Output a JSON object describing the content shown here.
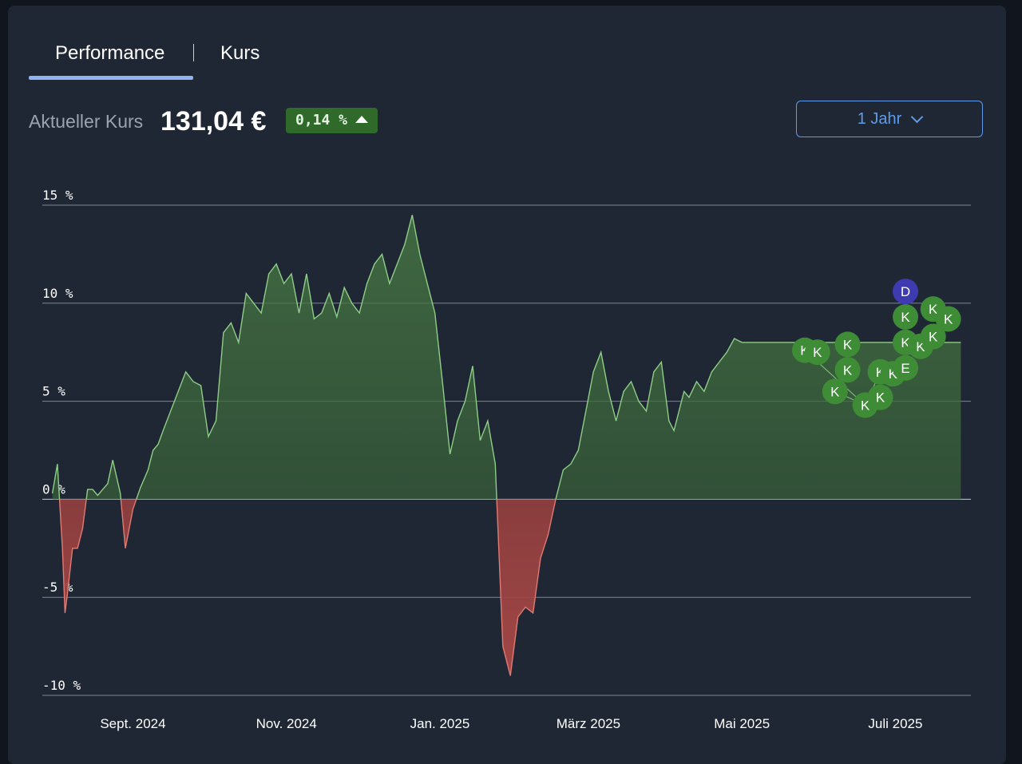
{
  "tabs": [
    {
      "label": "Performance",
      "active": true
    },
    {
      "label": "Kurs",
      "active": false
    }
  ],
  "price": {
    "label": "Aktueller Kurs",
    "value": "131,04 €",
    "change": "0,14 %",
    "direction": "up"
  },
  "range_select": {
    "value": "1 Jahr"
  },
  "colors": {
    "positive_line": "#8fce87",
    "negative_line": "#e07a72",
    "marker_k": "#3f8c37",
    "marker_d": "#3e3bb0",
    "accent": "#5e9be8"
  },
  "chart_data": {
    "type": "area",
    "yunit": "%",
    "ylim": [
      -10,
      15
    ],
    "yticks": [
      15,
      10,
      5,
      0,
      -5,
      -10
    ],
    "ytick_labels": [
      "15 %",
      "10 %",
      "5 %",
      "0 %",
      "-5 %",
      "-10 %"
    ],
    "xlim": [
      "2024-07-27",
      "2025-07-31"
    ],
    "xticks": [
      {
        "date": "2024-09-01",
        "label": "Sept. 2024"
      },
      {
        "date": "2024-11-01",
        "label": "Nov. 2024"
      },
      {
        "date": "2025-01-01",
        "label": "Jan. 2025"
      },
      {
        "date": "2025-03-01",
        "label": "März 2025"
      },
      {
        "date": "2025-05-01",
        "label": "Mai 2025"
      },
      {
        "date": "2025-07-01",
        "label": "Juli 2025"
      }
    ],
    "grid": true,
    "series": [
      {
        "x": [
          "2024-07-31",
          "2024-08-02",
          "2024-08-04",
          "2024-08-05",
          "2024-08-06",
          "2024-08-08",
          "2024-08-10",
          "2024-08-12",
          "2024-08-14",
          "2024-08-16",
          "2024-08-18",
          "2024-08-20",
          "2024-08-22",
          "2024-08-24",
          "2024-08-27",
          "2024-08-29",
          "2024-09-01",
          "2024-09-04",
          "2024-09-07",
          "2024-09-09",
          "2024-09-11",
          "2024-09-13",
          "2024-09-16",
          "2024-09-19",
          "2024-09-22",
          "2024-09-25",
          "2024-09-28",
          "2024-10-01",
          "2024-10-04",
          "2024-10-07",
          "2024-10-10",
          "2024-10-13",
          "2024-10-16",
          "2024-10-19",
          "2024-10-22",
          "2024-10-25",
          "2024-10-28",
          "2024-10-31",
          "2024-11-03",
          "2024-11-06",
          "2024-11-09",
          "2024-11-12",
          "2024-11-15",
          "2024-11-18",
          "2024-11-21",
          "2024-11-24",
          "2024-11-27",
          "2024-11-30",
          "2024-12-03",
          "2024-12-06",
          "2024-12-09",
          "2024-12-12",
          "2024-12-15",
          "2024-12-18",
          "2024-12-21",
          "2024-12-24",
          "2024-12-27",
          "2024-12-30",
          "2025-01-02",
          "2025-01-05",
          "2025-01-08",
          "2025-01-11",
          "2025-01-14",
          "2025-01-17",
          "2025-01-20",
          "2025-01-23",
          "2025-01-26",
          "2025-01-29",
          "2025-02-01",
          "2025-02-04",
          "2025-02-07",
          "2025-02-10",
          "2025-02-13",
          "2025-02-16",
          "2025-02-19",
          "2025-02-22",
          "2025-02-25",
          "2025-02-28",
          "2025-03-03",
          "2025-03-06",
          "2025-03-09",
          "2025-03-12",
          "2025-03-15",
          "2025-03-18",
          "2025-03-21",
          "2025-03-24",
          "2025-03-27",
          "2025-03-30",
          "2025-04-02",
          "2025-04-04",
          "2025-04-06",
          "2025-04-08",
          "2025-04-10",
          "2025-04-13",
          "2025-04-16",
          "2025-04-19",
          "2025-04-22",
          "2025-04-25",
          "2025-04-28",
          "2025-05-01",
          "2025-05-04",
          "2025-05-07",
          "2025-05-10",
          "2025-05-13",
          "2025-05-16",
          "2025-05-19",
          "2025-05-22",
          "2025-05-25",
          "2025-05-28",
          "2025-05-31",
          "2025-06-03",
          "2025-06-06",
          "2025-06-09",
          "2025-06-12",
          "2025-06-15",
          "2025-06-18",
          "2025-06-21",
          "2025-06-24",
          "2025-06-27",
          "2025-06-30",
          "2025-07-03",
          "2025-07-06",
          "2025-07-09",
          "2025-07-12",
          "2025-07-15",
          "2025-07-18",
          "2025-07-21",
          "2025-07-24",
          "2025-07-27"
        ],
        "values": [
          0.3,
          1.8,
          -2.5,
          -5.8,
          -4.8,
          -2.5,
          -2.5,
          -1.5,
          0.5,
          0.5,
          0.2,
          0.5,
          0.8,
          2.0,
          0.3,
          -2.5,
          -0.5,
          0.6,
          1.5,
          2.5,
          2.8,
          3.5,
          4.5,
          5.5,
          6.5,
          6.0,
          5.8,
          3.2,
          4.0,
          8.5,
          9.0,
          8.0,
          10.5,
          10.0,
          9.5,
          11.5,
          12.0,
          11.0,
          11.5,
          9.5,
          11.5,
          9.2,
          9.5,
          10.5,
          9.3,
          10.8,
          10.0,
          9.5,
          11.0,
          12.0,
          12.5,
          11.0,
          12.0,
          13.0,
          14.5,
          12.5,
          11.0,
          9.5,
          6.0,
          2.3,
          4.0,
          5.0,
          6.8,
          3.0,
          4.0,
          1.8,
          -7.5,
          -9.0,
          -6.0,
          -5.5,
          -5.8,
          -3.0,
          -1.8,
          0,
          1.5,
          1.8,
          2.5,
          4.5,
          6.5,
          7.5,
          5.5,
          4.0,
          5.5,
          6.0,
          5.0,
          4.5,
          6.5,
          7.0,
          4.0,
          3.5,
          4.5,
          5.5,
          5.2,
          6.0,
          5.5,
          6.5,
          7.0,
          7.5,
          8.2,
          8.0,
          8.0,
          8.0,
          8.0,
          8.0,
          8.0,
          8.0,
          8.0,
          8.0,
          8.0,
          8.0,
          8.0,
          8.0,
          8.0,
          8.0,
          8.0,
          8.0,
          8.0,
          8.0,
          8.0,
          8.0,
          8.0,
          8.0,
          8.0,
          8.0,
          8.0,
          8.0,
          8.0,
          8.0,
          8.0
        ]
      }
    ],
    "events": [
      {
        "label": "K",
        "date": "2025-05-26",
        "y": 7.6
      },
      {
        "label": "K",
        "date": "2025-05-31",
        "y": 7.5
      },
      {
        "label": "K",
        "date": "2025-06-07",
        "y": 5.5
      },
      {
        "label": "K",
        "date": "2025-06-12",
        "y": 7.9
      },
      {
        "label": "K",
        "date": "2025-06-12",
        "y": 6.6
      },
      {
        "label": "K",
        "date": "2025-06-19",
        "y": 4.8
      },
      {
        "label": "K",
        "date": "2025-06-25",
        "y": 6.5
      },
      {
        "label": "K",
        "date": "2025-06-25",
        "y": 5.2
      },
      {
        "label": "K",
        "date": "2025-06-30",
        "y": 6.4
      },
      {
        "label": "E",
        "date": "2025-07-05",
        "y": 6.7
      },
      {
        "label": "K",
        "date": "2025-07-05",
        "y": 8.0
      },
      {
        "label": "K",
        "date": "2025-07-05",
        "y": 9.3
      },
      {
        "label": "D",
        "date": "2025-07-05",
        "y": 10.6
      },
      {
        "label": "K",
        "date": "2025-07-11",
        "y": 7.8
      },
      {
        "label": "K",
        "date": "2025-07-16",
        "y": 8.3
      },
      {
        "label": "K",
        "date": "2025-07-16",
        "y": 9.7
      },
      {
        "label": "K",
        "date": "2025-07-22",
        "y": 9.2
      }
    ]
  }
}
